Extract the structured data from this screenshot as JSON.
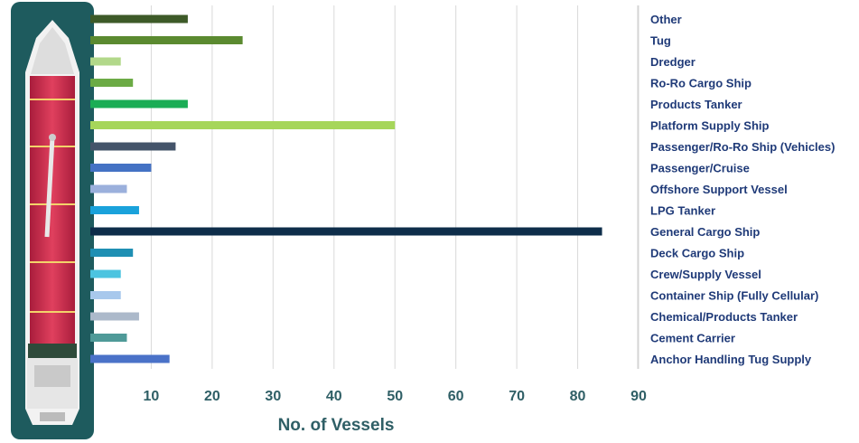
{
  "chart_data": {
    "type": "bar",
    "orientation": "horizontal",
    "xlabel": "No. of Vessels",
    "xlim": [
      0,
      90
    ],
    "xticks": [
      10,
      20,
      30,
      40,
      50,
      60,
      70,
      80,
      90
    ],
    "grid": true,
    "legend_position": "right",
    "categories": [
      "Other",
      "Tug",
      "Dredger",
      "Ro-Ro Cargo Ship",
      "Products Tanker",
      "Platform Supply Ship",
      "Passenger/Ro-Ro Ship (Vehicles)",
      "Passenger/Cruise",
      "Offshore Support Vessel",
      "LPG Tanker",
      "General Cargo Ship",
      "Deck Cargo Ship",
      "Crew/Supply Vessel",
      "Container Ship (Fully Cellular)",
      "Chemical/Products Tanker",
      "Cement Carrier",
      "Anchor Handling Tug Supply"
    ],
    "values": [
      16,
      25,
      5,
      7,
      16,
      50,
      14,
      10,
      6,
      8,
      84,
      7,
      5,
      5,
      8,
      6,
      13
    ],
    "colors": [
      "#3d5a28",
      "#5b8a30",
      "#b2d88a",
      "#6cab45",
      "#1aad55",
      "#a6d65a",
      "#44546a",
      "#4472c4",
      "#9bb0dc",
      "#1aa2db",
      "#0e2d4a",
      "#1f8fb3",
      "#4cc4e0",
      "#a8c8ec",
      "#acb9ca",
      "#4f9a98",
      "#4a72c8"
    ]
  }
}
